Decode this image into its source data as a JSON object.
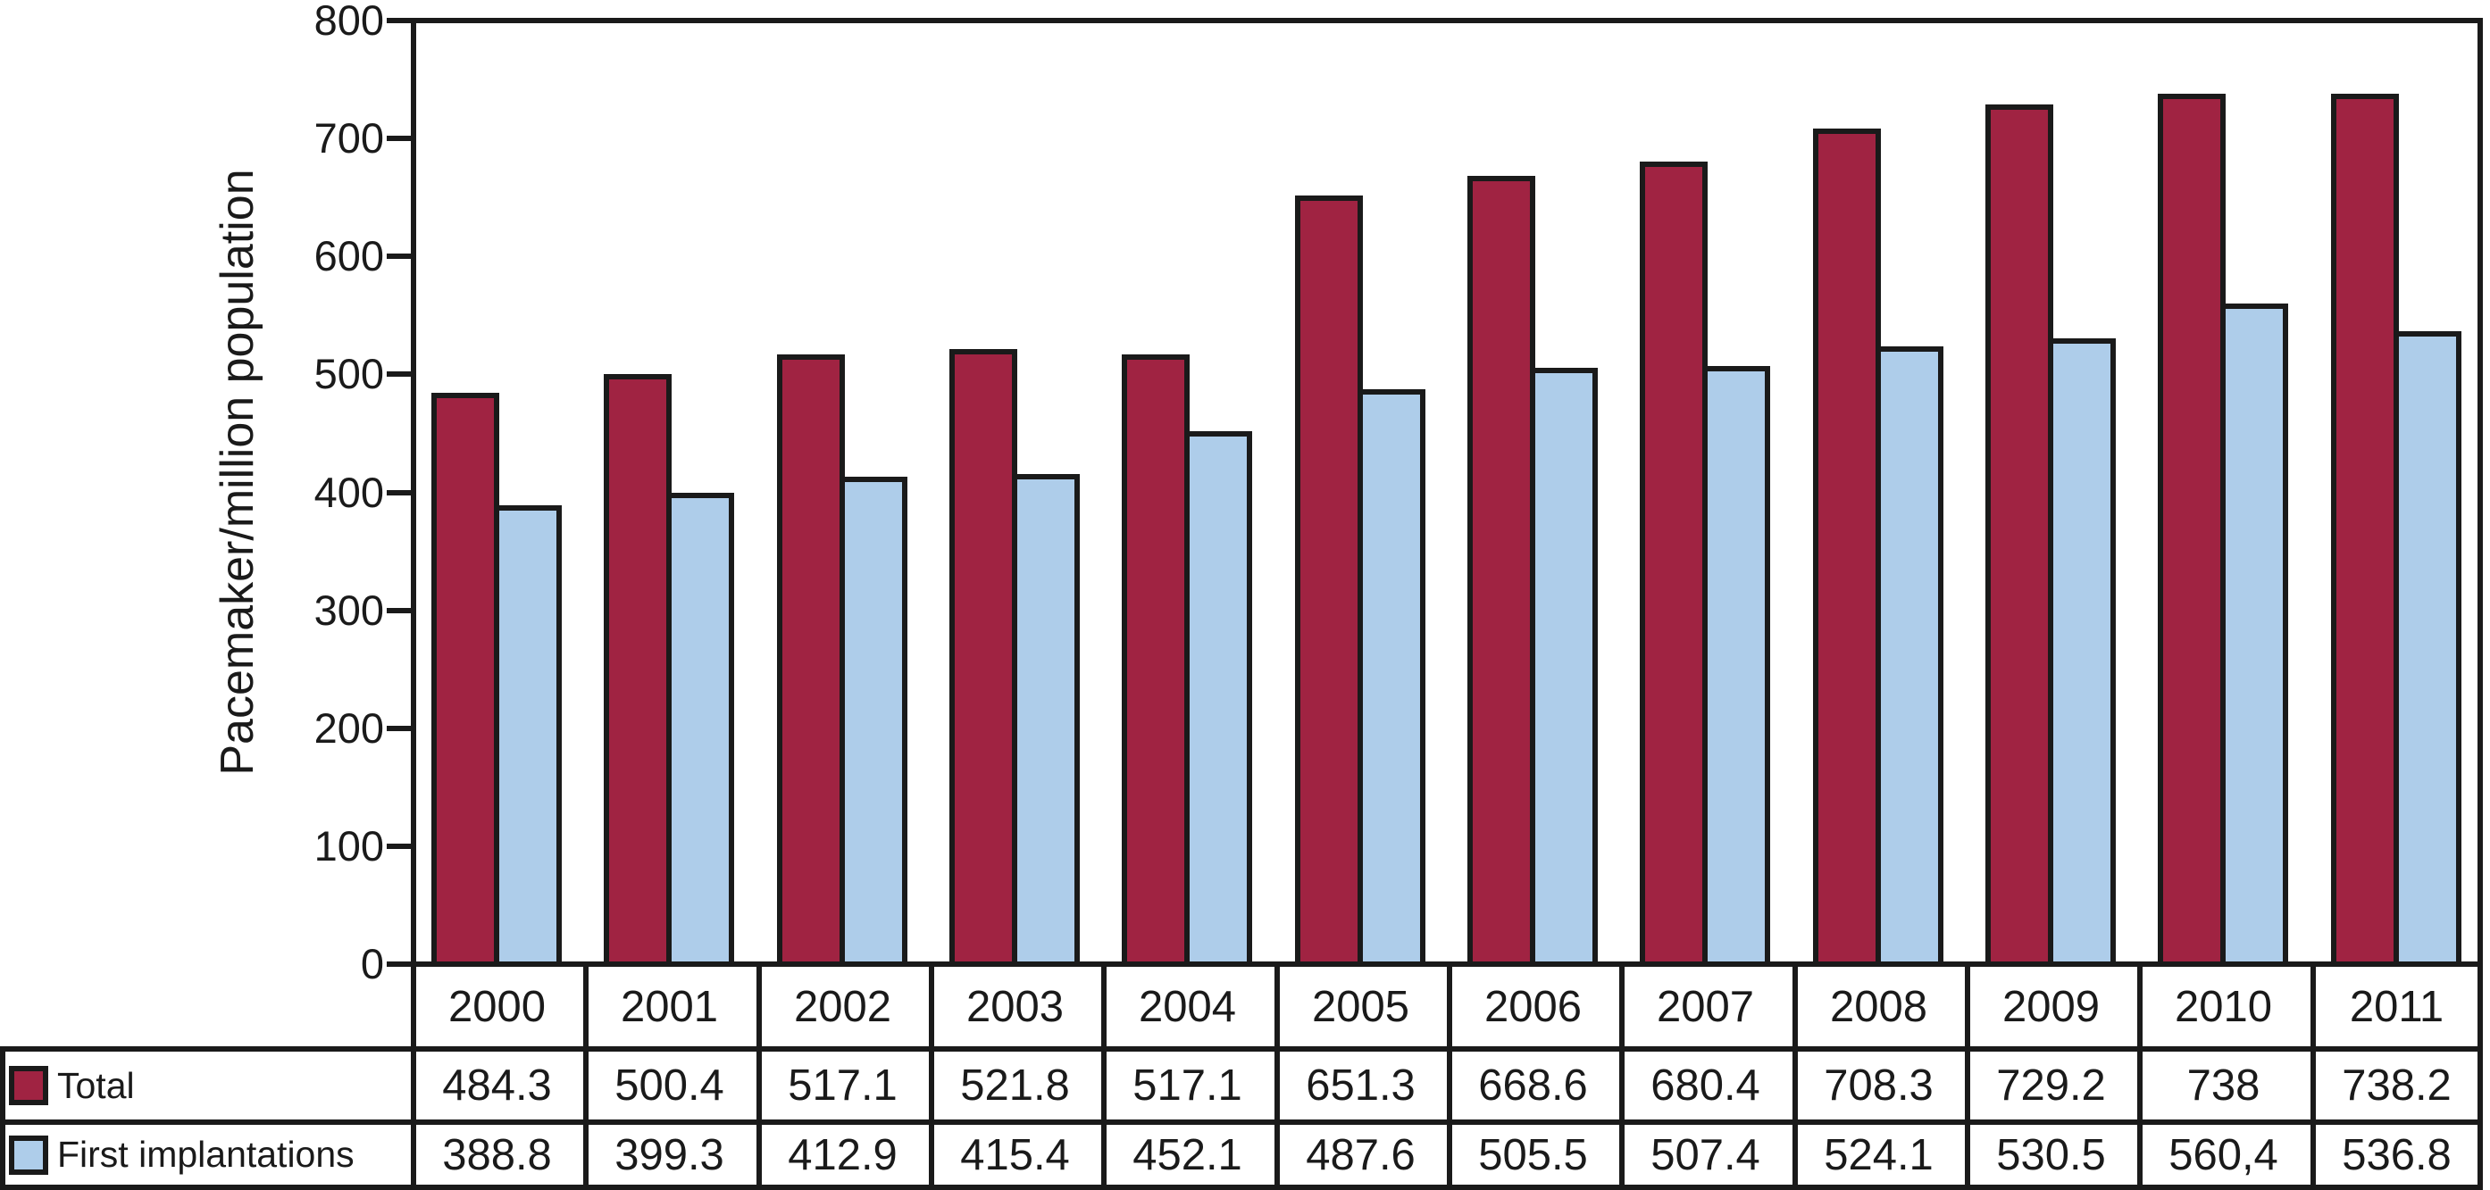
{
  "chart_data": {
    "type": "bar",
    "title": "",
    "xlabel": "",
    "ylabel": "Pacemaker/million population",
    "ylim": [
      0,
      800
    ],
    "ytick_interval": 100,
    "yticks": [
      800,
      700,
      600,
      500,
      400,
      300,
      200,
      100,
      0
    ],
    "grid": false,
    "legend_position": "table rows, bottom left",
    "categories": [
      "2000",
      "2001",
      "2002",
      "2003",
      "2004",
      "2005",
      "2006",
      "2007",
      "2008",
      "2009",
      "2010",
      "2011"
    ],
    "series": [
      {
        "name": "Total",
        "color": "#A02342",
        "values": [
          484.3,
          500.4,
          517.1,
          521.8,
          517.1,
          651.3,
          668.6,
          680.4,
          708.3,
          729.2,
          738,
          738.2
        ],
        "labels": [
          "484.3",
          "500.4",
          "517.1",
          "521.8",
          "517.1",
          "651.3",
          "668.6",
          "680.4",
          "708.3",
          "729.2",
          "738",
          "738.2"
        ]
      },
      {
        "name": "First implantations",
        "color": "#AECDEA",
        "values": [
          388.8,
          399.3,
          412.9,
          415.4,
          452.1,
          487.6,
          505.5,
          507.4,
          524.1,
          530.5,
          560.4,
          536.8
        ],
        "labels": [
          "388.8",
          "399.3",
          "412.9",
          "415.4",
          "452.1",
          "487.6",
          "505.5",
          "507.4",
          "524.1",
          "530.5",
          "560,4",
          "536.8"
        ]
      }
    ]
  },
  "colors": {
    "background": "#FFFFFF",
    "line": "#1A1A1A",
    "text": "#1A1A1A",
    "total_fill": "#A02342",
    "first_implantations_fill": "#AECDEA"
  }
}
